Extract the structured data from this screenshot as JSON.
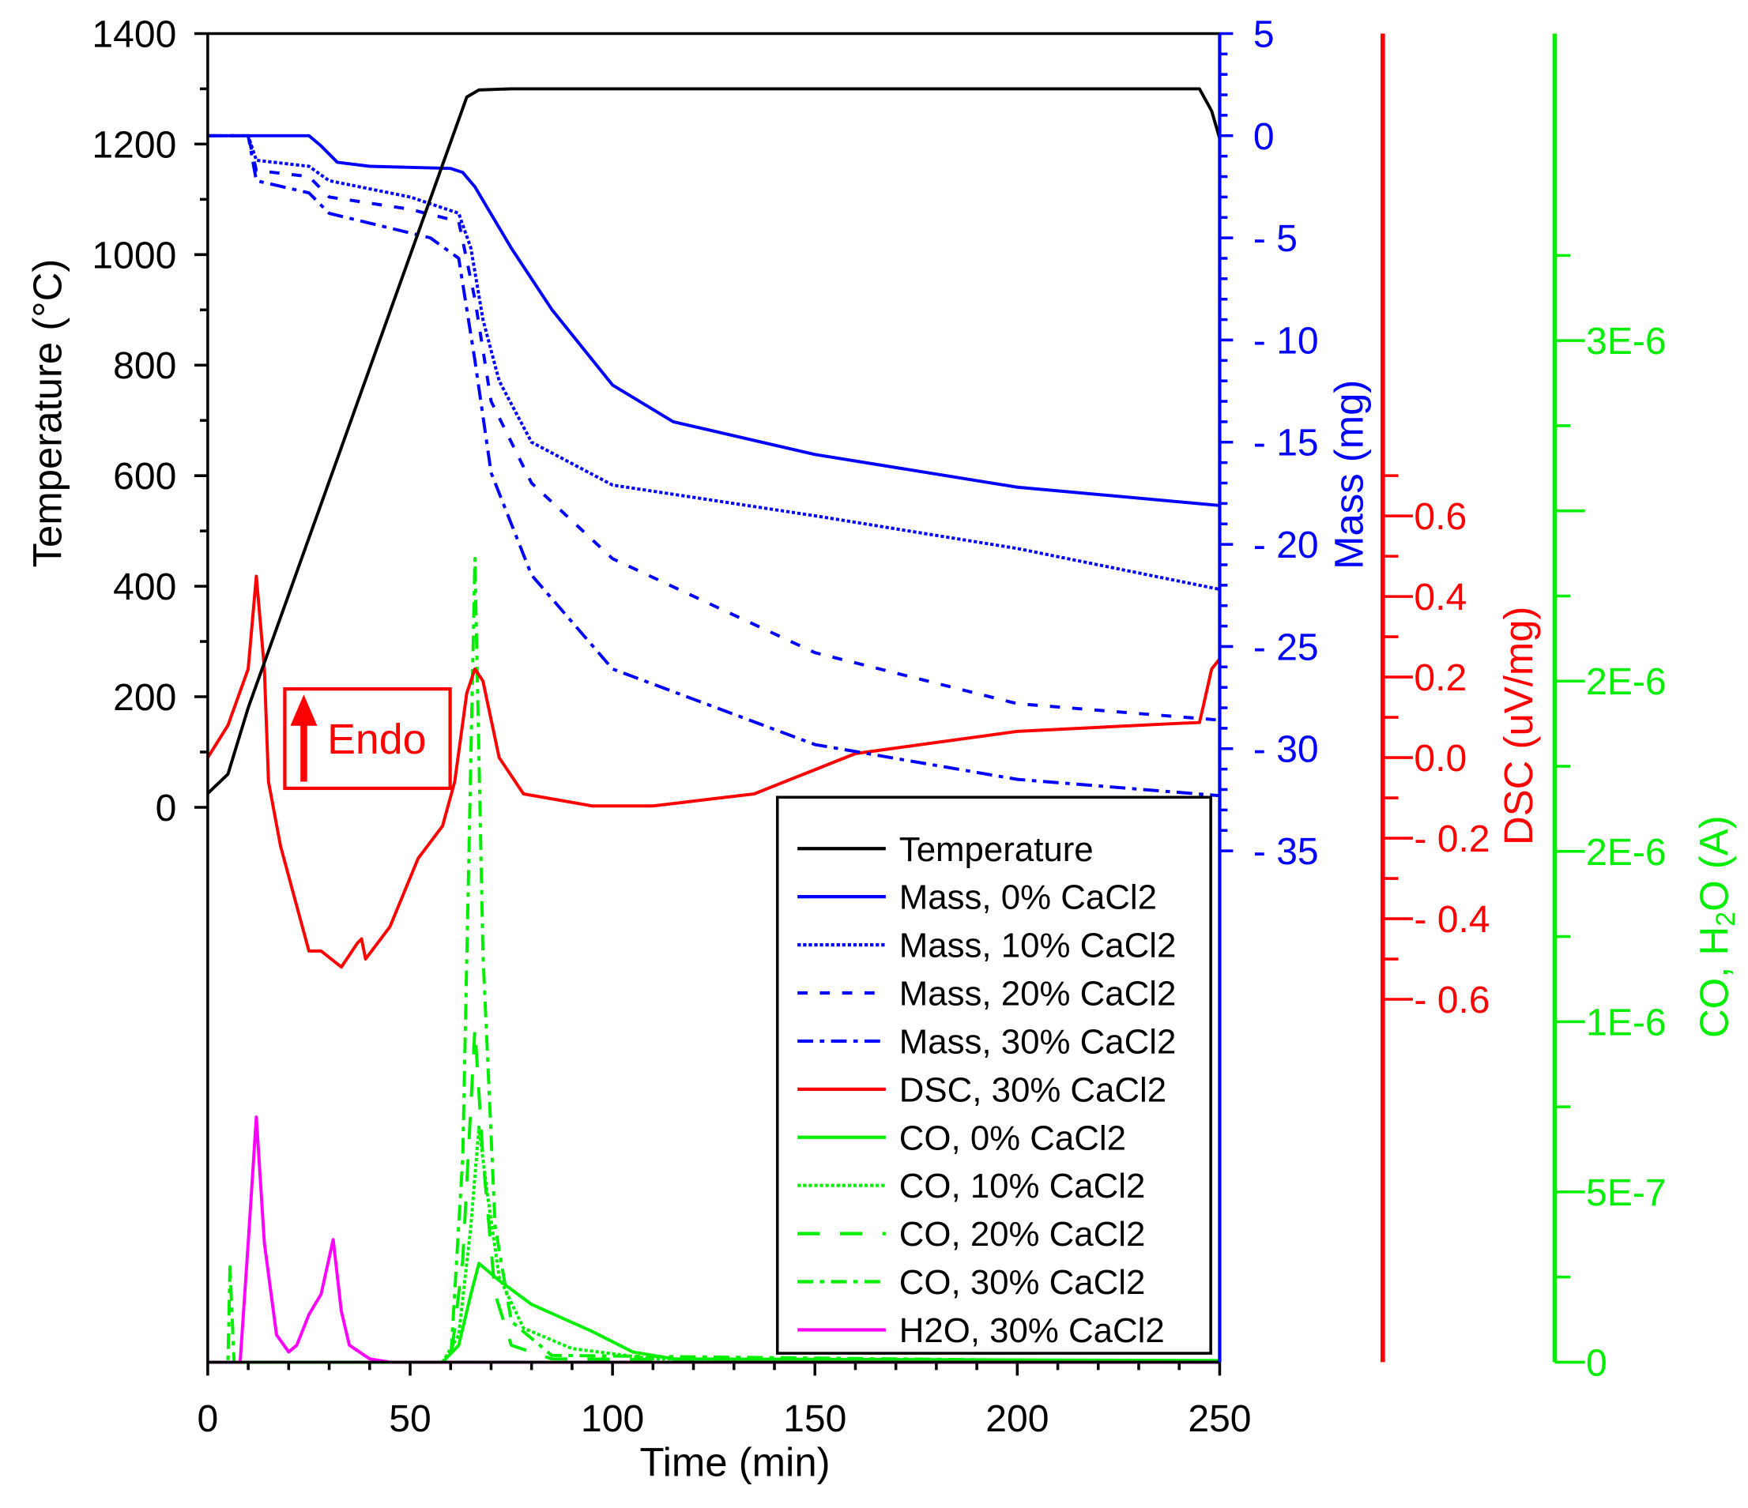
{
  "chart_data": {
    "type": "line",
    "xlabel": "Time (min)",
    "xlim": [
      0,
      250
    ],
    "xticks": [
      "0",
      "50",
      "100",
      "150",
      "200",
      "250"
    ],
    "axes": {
      "temperature": {
        "label": "Temperature (°C)",
        "ylim": [
          0,
          1400
        ],
        "ticks": [
          "0",
          "200",
          "400",
          "600",
          "800",
          "1000",
          "1200",
          "1400"
        ],
        "color": "#000000"
      },
      "mass": {
        "label": "Mass (mg)",
        "ylim": [
          -35,
          5
        ],
        "ticks": [
          "-35",
          "-30",
          "-25",
          "-20",
          "-15",
          "-10",
          "-5",
          "0",
          "5"
        ],
        "color": "#0000ff"
      },
      "dsc": {
        "label": "DSC (uV/mg)",
        "ticks": [
          "-0.6",
          "-0.4",
          "-0.2",
          "0.0",
          "0.2",
          "0.4",
          "0.6"
        ],
        "color": "#ff0000"
      },
      "gas": {
        "label_prefix": "CO, H",
        "label_sub": "2",
        "label_suffix": "O (A)",
        "ylim": [
          0,
          3.25e-06
        ],
        "ticks": [
          "0",
          "5E-7",
          "1E-6",
          "2E-6",
          "2E-6",
          "3E-6"
        ],
        "tick_values": [
          0,
          5e-07,
          1e-06,
          1.5e-06,
          2e-06,
          3e-06
        ],
        "color": "#00ee00"
      }
    },
    "annotation": {
      "text": "Endo",
      "color": "#ff0000"
    },
    "legend_position": "bottom-right",
    "grid": false,
    "series": [
      {
        "name": "Temperature",
        "axis": "temperature",
        "color": "#000000",
        "style": "solid",
        "points": [
          [
            0,
            25
          ],
          [
            5,
            60
          ],
          [
            10,
            180
          ],
          [
            64,
            1285
          ],
          [
            67,
            1298
          ],
          [
            75,
            1300
          ],
          [
            245,
            1300
          ],
          [
            248,
            1260
          ],
          [
            250,
            1210
          ]
        ]
      },
      {
        "name": "Mass, 0% CaCl2",
        "axis": "mass",
        "color": "#0000ff",
        "style": "solid",
        "points": [
          [
            0,
            0
          ],
          [
            25,
            0
          ],
          [
            28,
            -0.5
          ],
          [
            32,
            -1.3
          ],
          [
            40,
            -1.5
          ],
          [
            60,
            -1.6
          ],
          [
            63,
            -1.8
          ],
          [
            66,
            -2.5
          ],
          [
            75,
            -5.5
          ],
          [
            85,
            -8.5
          ],
          [
            100,
            -12.2
          ],
          [
            115,
            -14
          ],
          [
            150,
            -15.6
          ],
          [
            200,
            -17.2
          ],
          [
            250,
            -18.1
          ]
        ]
      },
      {
        "name": "Mass, 10% CaCl2",
        "axis": "mass",
        "color": "#0000ff",
        "style": "dot",
        "points": [
          [
            0,
            0
          ],
          [
            10,
            0
          ],
          [
            12,
            -1.2
          ],
          [
            25,
            -1.5
          ],
          [
            30,
            -2.2
          ],
          [
            50,
            -3
          ],
          [
            62,
            -3.8
          ],
          [
            65,
            -5.5
          ],
          [
            68,
            -9
          ],
          [
            72,
            -12
          ],
          [
            80,
            -15
          ],
          [
            100,
            -17.1
          ],
          [
            150,
            -18.6
          ],
          [
            200,
            -20.2
          ],
          [
            250,
            -22.2
          ]
        ]
      },
      {
        "name": "Mass, 20% CaCl2",
        "axis": "mass",
        "color": "#0000ff",
        "style": "dash",
        "points": [
          [
            0,
            0
          ],
          [
            10,
            0
          ],
          [
            12,
            -1.7
          ],
          [
            25,
            -2
          ],
          [
            30,
            -3
          ],
          [
            50,
            -3.6
          ],
          [
            62,
            -4.2
          ],
          [
            66,
            -8
          ],
          [
            70,
            -13
          ],
          [
            80,
            -17
          ],
          [
            100,
            -20.7
          ],
          [
            150,
            -25.3
          ],
          [
            200,
            -27.8
          ],
          [
            250,
            -28.6
          ]
        ]
      },
      {
        "name": "Mass, 30% CaCl2",
        "axis": "mass",
        "color": "#0000ff",
        "style": "dashdot",
        "points": [
          [
            0,
            0
          ],
          [
            10,
            0
          ],
          [
            12,
            -2.2
          ],
          [
            25,
            -2.8
          ],
          [
            30,
            -3.8
          ],
          [
            55,
            -5
          ],
          [
            62,
            -6
          ],
          [
            66,
            -11
          ],
          [
            70,
            -16.5
          ],
          [
            80,
            -21.5
          ],
          [
            100,
            -26.1
          ],
          [
            150,
            -29.8
          ],
          [
            200,
            -31.5
          ],
          [
            250,
            -32.3
          ]
        ]
      },
      {
        "name": "DSC, 30% CaCl2",
        "axis": "dsc",
        "color": "#ff0000",
        "style": "solid",
        "points": [
          [
            0,
            0
          ],
          [
            5,
            0.08
          ],
          [
            10,
            0.22
          ],
          [
            12,
            0.45
          ],
          [
            14,
            0.22
          ],
          [
            15,
            -0.06
          ],
          [
            18,
            -0.22
          ],
          [
            25,
            -0.48
          ],
          [
            28,
            -0.48
          ],
          [
            33,
            -0.52
          ],
          [
            37,
            -0.46
          ],
          [
            38,
            -0.45
          ],
          [
            39,
            -0.5
          ],
          [
            45,
            -0.42
          ],
          [
            52,
            -0.25
          ],
          [
            58,
            -0.17
          ],
          [
            61,
            -0.06
          ],
          [
            64,
            0.16
          ],
          [
            66,
            0.22
          ],
          [
            68,
            0.19
          ],
          [
            72,
            0
          ],
          [
            78,
            -0.09
          ],
          [
            95,
            -0.12
          ],
          [
            110,
            -0.12
          ],
          [
            135,
            -0.09
          ],
          [
            160,
            0.01
          ],
          [
            200,
            0.065
          ],
          [
            240,
            0.085
          ],
          [
            245,
            0.087
          ],
          [
            246,
            0.13
          ],
          [
            248,
            0.22
          ],
          [
            250,
            0.245
          ]
        ]
      },
      {
        "name": "CO, 0% CaCl2",
        "axis": "gas",
        "color": "#00ee00",
        "style": "solid",
        "points": [
          [
            0,
            0
          ],
          [
            58,
            0
          ],
          [
            62,
            5e-08
          ],
          [
            65,
            2e-07
          ],
          [
            67,
            2.9e-07
          ],
          [
            72,
            2.4e-07
          ],
          [
            80,
            1.7e-07
          ],
          [
            95,
            9e-08
          ],
          [
            105,
            3e-08
          ],
          [
            115,
            1e-08
          ],
          [
            250,
            5e-09
          ]
        ]
      },
      {
        "name": "CO, 10% CaCl2",
        "axis": "gas",
        "color": "#00ee00",
        "style": "dot",
        "points": [
          [
            0,
            0
          ],
          [
            58,
            0
          ],
          [
            62,
            8e-08
          ],
          [
            65,
            4e-07
          ],
          [
            67,
            6.9e-07
          ],
          [
            69,
            5e-07
          ],
          [
            72,
            2.5e-07
          ],
          [
            78,
            1e-07
          ],
          [
            90,
            4e-08
          ],
          [
            110,
            1e-08
          ],
          [
            250,
            0
          ]
        ]
      },
      {
        "name": "CO, 20% CaCl2",
        "axis": "gas",
        "color": "#00ee00",
        "style": "longdash",
        "points": [
          [
            0,
            0
          ],
          [
            60,
            0
          ],
          [
            63,
            3e-07
          ],
          [
            66,
            9.8e-07
          ],
          [
            68,
            6e-07
          ],
          [
            71,
            2e-07
          ],
          [
            75,
            5e-08
          ],
          [
            85,
            1e-08
          ],
          [
            250,
            0
          ]
        ]
      },
      {
        "name": "CO, 30% CaCl2",
        "axis": "gas",
        "color": "#00ee00",
        "style": "dashdot",
        "points": [
          [
            0,
            0
          ],
          [
            5,
            0
          ],
          [
            5.5,
            2.8e-07
          ],
          [
            6.5,
            0
          ],
          [
            60,
            0
          ],
          [
            63,
            6e-07
          ],
          [
            66,
            2.36e-06
          ],
          [
            68,
            1.2e-06
          ],
          [
            71,
            4e-07
          ],
          [
            75,
            1.2e-07
          ],
          [
            85,
            2e-08
          ],
          [
            250,
            0
          ]
        ]
      },
      {
        "name": "H2O, 30% CaCl2",
        "axis": "gas",
        "color": "#ff00ff",
        "style": "solid",
        "points": [
          [
            0,
            0
          ],
          [
            8,
            0
          ],
          [
            10,
            3.5e-07
          ],
          [
            12,
            7.2e-07
          ],
          [
            14,
            3.5e-07
          ],
          [
            17,
            8e-08
          ],
          [
            20,
            3e-08
          ],
          [
            22,
            5e-08
          ],
          [
            25,
            1.4e-07
          ],
          [
            28,
            2e-07
          ],
          [
            31,
            3.6e-07
          ],
          [
            33,
            1.5e-07
          ],
          [
            35,
            5e-08
          ],
          [
            40,
            1e-08
          ],
          [
            45,
            0
          ],
          [
            250,
            0
          ]
        ]
      }
    ]
  }
}
